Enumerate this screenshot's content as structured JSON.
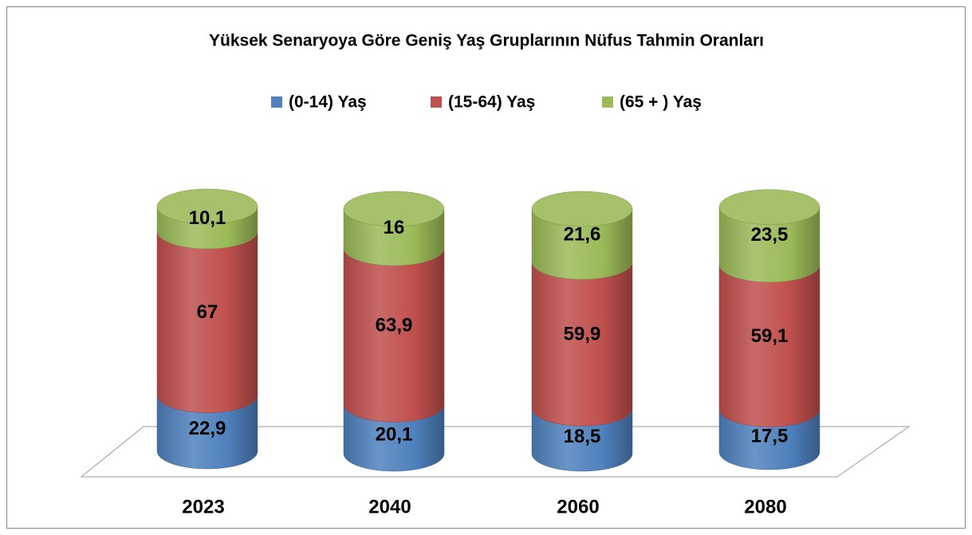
{
  "chart_data": {
    "type": "bar3d_stacked_cylinder",
    "title": "Yüksek Senaryoya Göre Geniş Yaş Gruplarının  Nüfus Tahmin Oranları",
    "categories": [
      "2023",
      "2040",
      "2060",
      "2080"
    ],
    "series": [
      {
        "name": "(0-14) Yaş",
        "color": "#4f81bd",
        "values": [
          22.9,
          20.1,
          18.5,
          17.5
        ],
        "value_labels": [
          "22,9",
          "20,1",
          "18,5",
          "17,5"
        ]
      },
      {
        "name": "(15-64) Yaş",
        "color": "#c0504d",
        "values": [
          67,
          63.9,
          59.9,
          59.1
        ],
        "value_labels": [
          "67",
          "63,9",
          "59,9",
          "59,1"
        ]
      },
      {
        "name": "(65 + ) Yaş",
        "color": "#9bbb59",
        "values": [
          10.1,
          16,
          21.6,
          23.5
        ],
        "value_labels": [
          "10,1",
          "16",
          "21,6",
          "23,5"
        ]
      }
    ],
    "legend": "top"
  }
}
